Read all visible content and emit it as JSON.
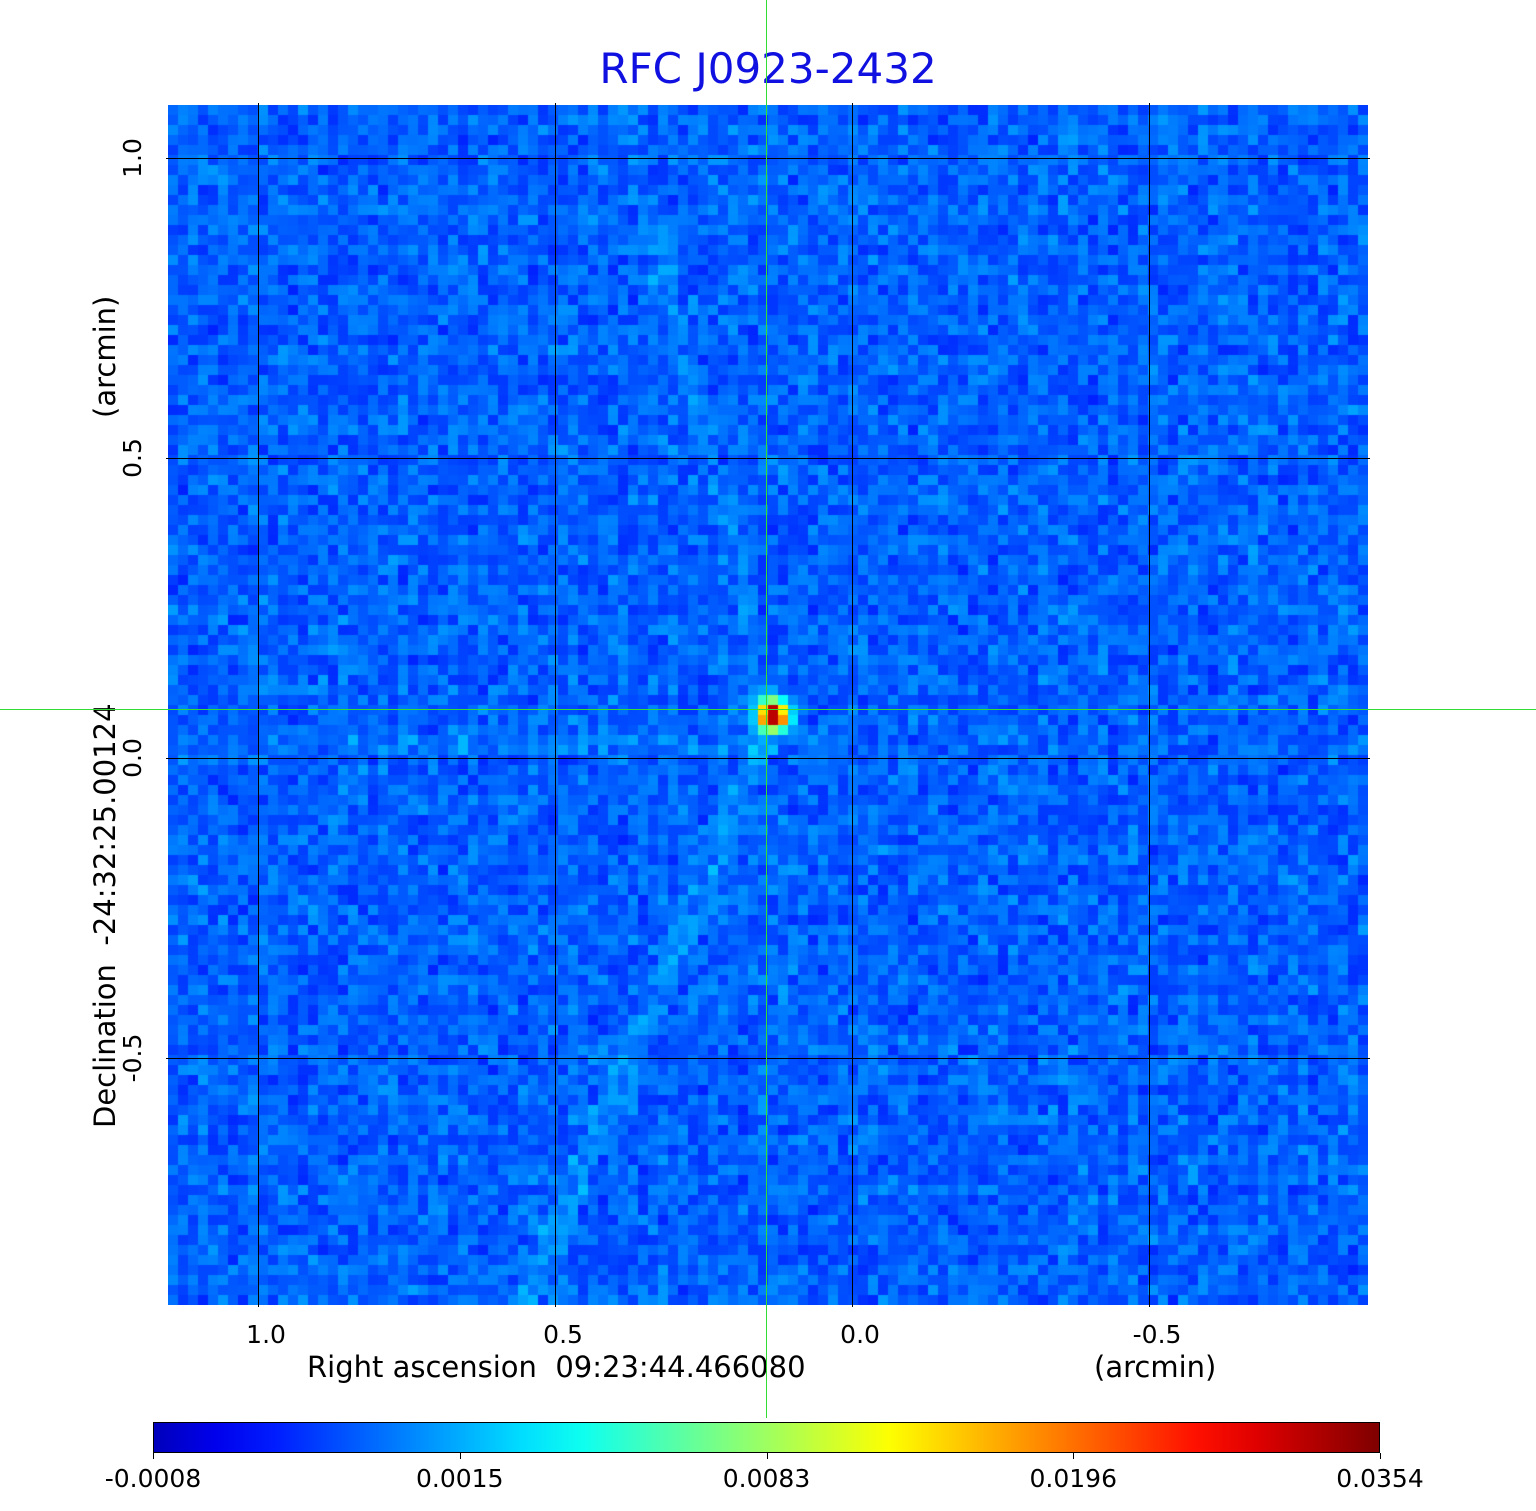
{
  "chart_data": {
    "type": "heatmap",
    "title": "RFC J0923-2432",
    "xlabel": "Right ascension  09:23:44.466080",
    "xunit": "(arcmin)",
    "ylabel": "Declination  -24:32:25.00124",
    "yunit": "(arcmin)",
    "xlim": [
      1.155,
      -0.872
    ],
    "ylim": [
      -0.915,
      1.092
    ],
    "x_ticks": [
      "1.0",
      "0.5",
      "0.0",
      "-0.5"
    ],
    "x_tick_values": [
      1.0,
      0.5,
      0.0,
      -0.5
    ],
    "y_ticks": [
      "1.0",
      "0.5",
      "0.0",
      "-0.5"
    ],
    "y_tick_values": [
      1.0,
      0.5,
      0.0,
      -0.5
    ],
    "grid": true,
    "crosshair": {
      "x": 0.145,
      "y": 0.082,
      "color": "#33dd33"
    },
    "source_peak": {
      "x": 0.145,
      "y": 0.082,
      "value": 0.0354
    },
    "colormap": "jet",
    "colorbar": {
      "ticks": [
        "-0.0008",
        "0.0015",
        "0.0083",
        "0.0196",
        "0.0354"
      ],
      "min": -0.0008,
      "max": 0.0354,
      "position": "bottom"
    },
    "title_color": "#1010e0"
  }
}
